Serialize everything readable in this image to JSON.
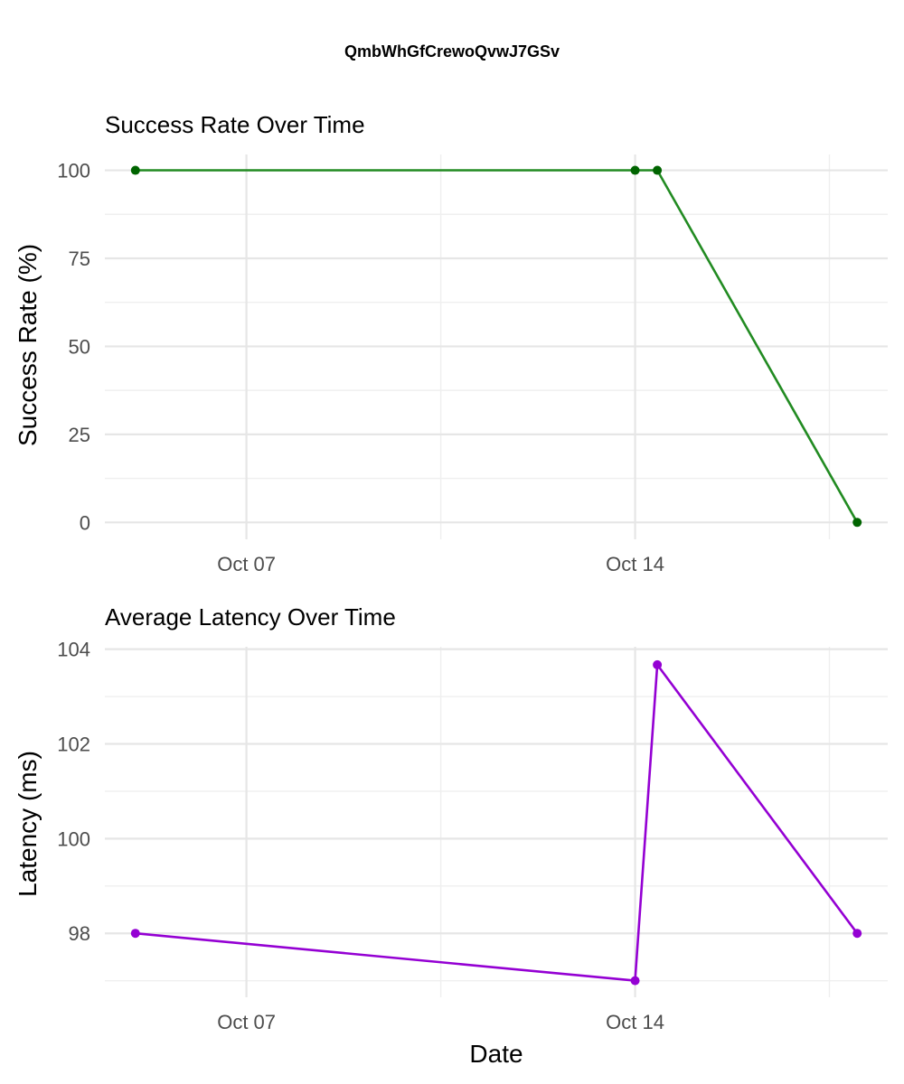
{
  "title": "QmbWhGfCrewoQvwJ7GSv",
  "colors": {
    "background": "#ffffff",
    "success_line": "#228b22",
    "success_point": "#006400",
    "latency_line": "#9400d3",
    "latency_point": "#9400d3",
    "grid": "#e6e6e6"
  },
  "chart_data": [
    {
      "type": "line",
      "title": "Success Rate Over Time",
      "xlabel": "",
      "ylabel": "Success Rate (%)",
      "x_ticks": [
        "Oct 07",
        "Oct 14"
      ],
      "y_ticks": [
        0,
        25,
        50,
        75,
        100
      ],
      "ylim": [
        0,
        100
      ],
      "grid": true,
      "series": [
        {
          "x": [
            "Oct 05",
            "Oct 14",
            "Oct 14",
            "Oct 18"
          ],
          "y": [
            100,
            100,
            100,
            0
          ]
        }
      ]
    },
    {
      "type": "line",
      "title": "Average Latency Over Time",
      "xlabel": "Date",
      "ylabel": "Latency (ms)",
      "x_ticks": [
        "Oct 07",
        "Oct 14"
      ],
      "y_ticks": [
        98,
        100,
        102,
        104
      ],
      "ylim": [
        97,
        104
      ],
      "grid": true,
      "series": [
        {
          "x": [
            "Oct 05",
            "Oct 14",
            "Oct 14",
            "Oct 18"
          ],
          "y": [
            98,
            97,
            103.67,
            98
          ]
        }
      ]
    }
  ]
}
